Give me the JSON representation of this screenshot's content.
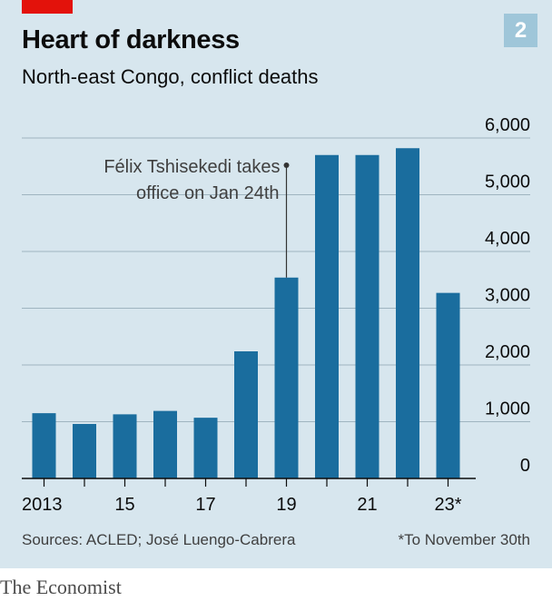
{
  "header": {
    "badge": "2",
    "title": "Heart of darkness",
    "subtitle": "North-east Congo, conflict deaths"
  },
  "colors": {
    "bar": "#1a6d9e",
    "accent": "#e3120b",
    "panel": "#d7e6ee",
    "grid": "#9fb4c0",
    "axis": "#0c0c0c"
  },
  "chart_data": {
    "type": "bar",
    "categories": [
      "2013",
      "2014",
      "2015",
      "2016",
      "2017",
      "2018",
      "2019",
      "2020",
      "2021",
      "2022",
      "2023"
    ],
    "x_tick_labels": [
      "2013",
      "",
      "15",
      "",
      "17",
      "",
      "19",
      "",
      "21",
      "",
      "23*"
    ],
    "values": [
      1150,
      960,
      1130,
      1190,
      1070,
      2240,
      3540,
      5700,
      5700,
      5820,
      3270
    ],
    "ylim": [
      0,
      6000
    ],
    "y_ticks": [
      0,
      1000,
      2000,
      3000,
      4000,
      5000,
      6000
    ],
    "y_tick_labels": [
      "0",
      "1,000",
      "2,000",
      "3,000",
      "4,000",
      "5,000",
      "6,000"
    ],
    "y_axis_side": "right",
    "grid": true,
    "annotation": {
      "lines": [
        "Félix Tshisekedi takes",
        "office on Jan 24th"
      ],
      "category": "2019"
    }
  },
  "footer": {
    "source": "Sources: ACLED; José Luengo-Cabrera",
    "footnote": "*To November 30th",
    "brand": "The Economist"
  }
}
